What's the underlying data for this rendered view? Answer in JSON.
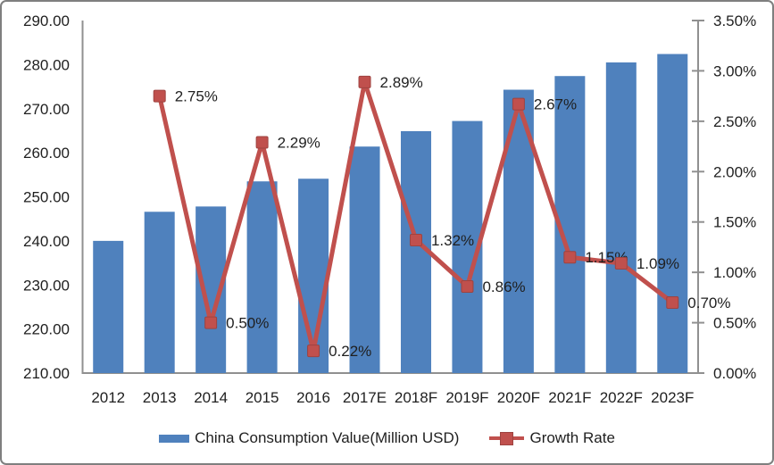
{
  "chart_data": {
    "type": "combo-bar-line",
    "categories": [
      "2012",
      "2013",
      "2014",
      "2015",
      "2016",
      "2017E",
      "2018F",
      "2019F",
      "2020F",
      "2021F",
      "2022F",
      "2023F"
    ],
    "series": [
      {
        "name": "China Consumption Value(Million USD)",
        "type": "bar",
        "y_axis": "left",
        "color": "#4F81BD",
        "values": [
          240.0,
          246.6,
          247.8,
          253.5,
          254.1,
          261.4,
          264.9,
          267.2,
          274.3,
          277.4,
          280.5,
          282.4
        ]
      },
      {
        "name": "Growth Rate",
        "type": "line",
        "y_axis": "right",
        "color": "#C0504D",
        "marker": "square",
        "marker_border_color": "#9E4340",
        "values": [
          null,
          2.75,
          0.5,
          2.29,
          0.22,
          2.89,
          1.32,
          0.86,
          2.67,
          1.15,
          1.09,
          0.7
        ],
        "point_labels": [
          "",
          "2.75%",
          "0.50%",
          "2.29%",
          "0.22%",
          "2.89%",
          "1.32%",
          "0.86%",
          "2.67%",
          "1.15%",
          "1.09%",
          "0.70%"
        ]
      }
    ],
    "left_axis": {
      "min": 210,
      "max": 290,
      "step": 10,
      "tick_labels": [
        "290.00",
        "280.00",
        "270.00",
        "260.00",
        "250.00",
        "240.00",
        "230.00",
        "220.00",
        "210.00"
      ]
    },
    "right_axis": {
      "min": 0,
      "max": 3.5,
      "step": 0.5,
      "tick_labels": [
        "3.50%",
        "3.00%",
        "2.50%",
        "2.00%",
        "1.50%",
        "1.00%",
        "0.50%",
        "0.00%"
      ]
    },
    "grid": "off",
    "title": "",
    "legend": {
      "position": "bottom",
      "items": [
        {
          "label": "China Consumption Value(Million USD)",
          "swatch": "bar",
          "color": "#4F81BD"
        },
        {
          "label": "Growth Rate",
          "swatch": "line-marker",
          "color": "#C0504D"
        }
      ]
    }
  },
  "styles": {
    "axis_line_color": "#909090",
    "text_color": "#1F1F1F",
    "frame_border_color": "#7F7F7F",
    "background": "#FFFFFF"
  }
}
